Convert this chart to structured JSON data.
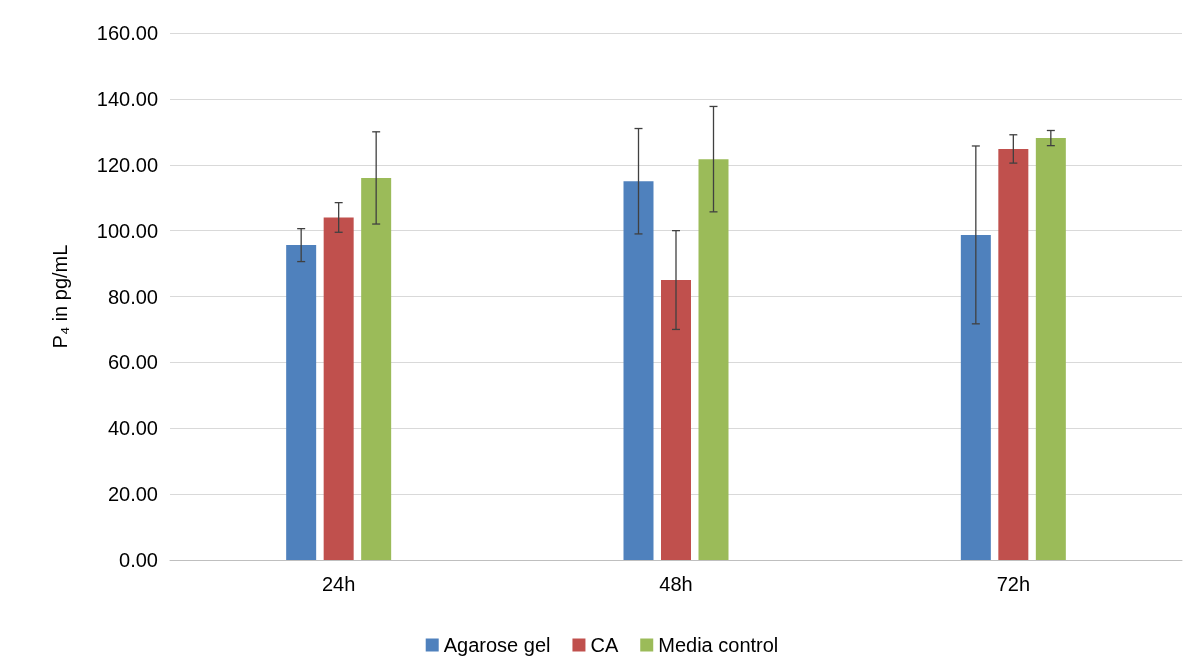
{
  "chart_data": {
    "type": "bar",
    "ylabel": "P₄ in pg/mL",
    "categories": [
      "24h",
      "48h",
      "72h"
    ],
    "series": [
      {
        "name": "Agarose gel",
        "color": "#4f81bd",
        "values": [
          95.6,
          115,
          98.7
        ],
        "errors": [
          5,
          16,
          27
        ]
      },
      {
        "name": "CA",
        "color": "#c0504d",
        "values": [
          104,
          85,
          124.8
        ],
        "errors": [
          4.5,
          15,
          4.3
        ]
      },
      {
        "name": "Media control",
        "color": "#9bbb59",
        "values": [
          116,
          121.7,
          128.1
        ],
        "errors": [
          14,
          16,
          2.3
        ]
      }
    ],
    "ylim": [
      0,
      160
    ],
    "yticks": [
      {
        "value": 0,
        "label": "0.00"
      },
      {
        "value": 20,
        "label": "20.00"
      },
      {
        "value": 40,
        "label": "40.00"
      },
      {
        "value": 60,
        "label": "60.00"
      },
      {
        "value": 80,
        "label": "80.00"
      },
      {
        "value": 100,
        "label": "100.00"
      },
      {
        "value": 120,
        "label": "120.00"
      },
      {
        "value": 140,
        "label": "140.00"
      },
      {
        "value": 160,
        "label": "160.00"
      }
    ],
    "grid": "y",
    "legend": "bottom"
  }
}
